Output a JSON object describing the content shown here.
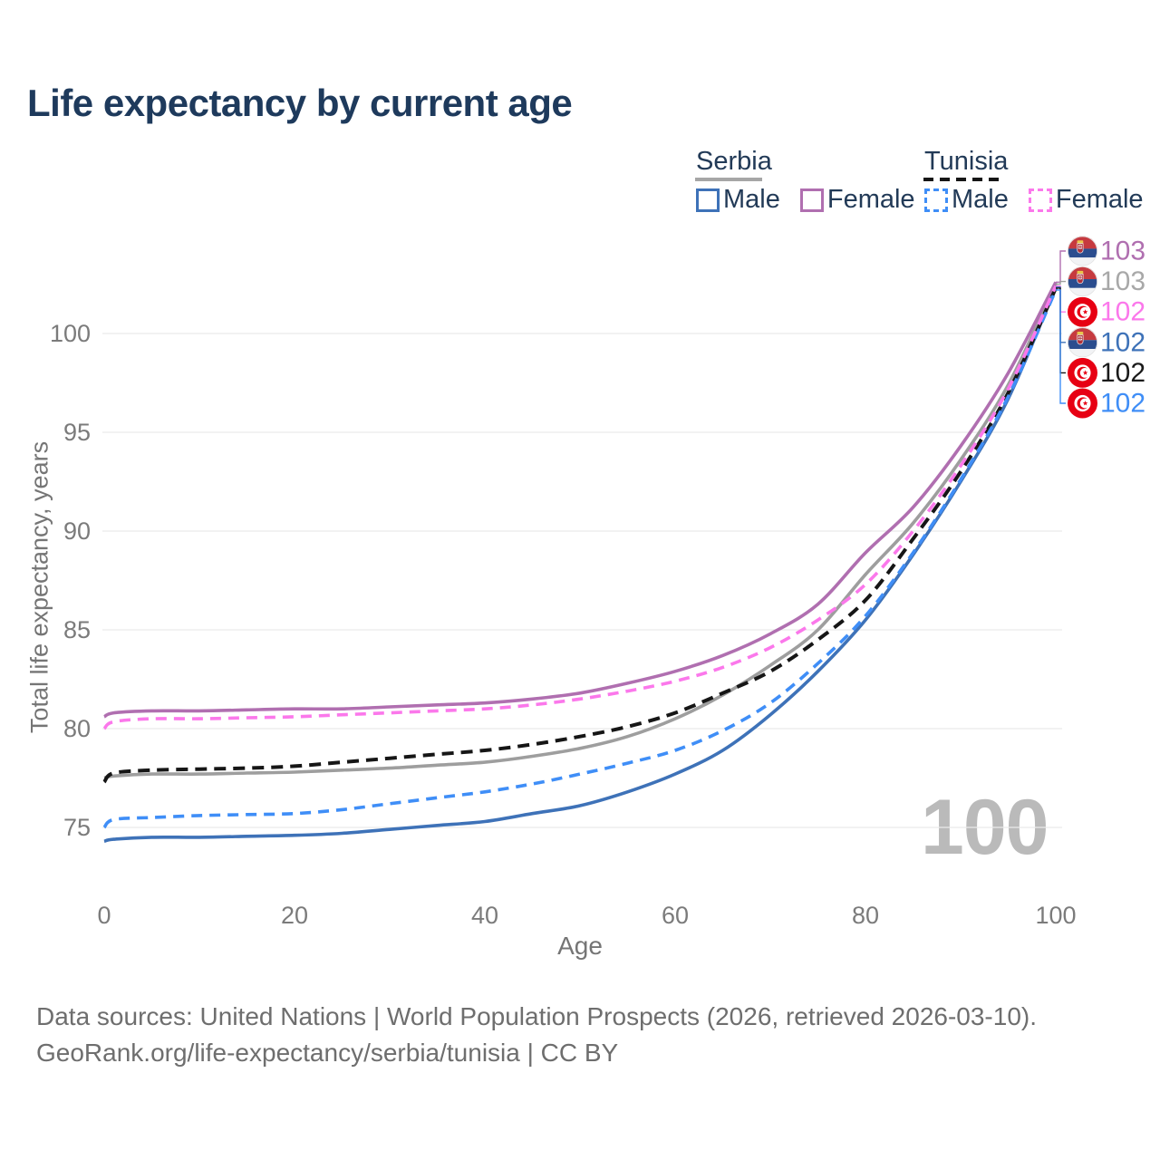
{
  "page": {
    "title": "Life expectancy by current age"
  },
  "legend": {
    "serbia": {
      "label": "Serbia",
      "male": "Male",
      "female": "Female",
      "line_color": "#9e9e9e",
      "line_style": "solid",
      "male_color": "#3e72b8",
      "female_color": "#b06fb0"
    },
    "tunisia": {
      "label": "Tunisia",
      "male": "Male",
      "female": "Female",
      "line_color": "#161616",
      "line_style": "dashed",
      "male_color": "#3f8ef7",
      "female_color": "#fb78eb"
    }
  },
  "watermark": "100",
  "footer": {
    "line1": "Data sources: United Nations | World Population Prospects (2026, retrieved 2026-03-10).",
    "line2": "GeoRank.org/life-expectancy/serbia/tunisia | CC BY"
  },
  "chart_data": {
    "type": "line",
    "title": "Life expectancy by current age",
    "xlabel": "Age",
    "ylabel": "Total life expectancy, years",
    "xlim": [
      0,
      100
    ],
    "ylim": [
      73.5,
      104
    ],
    "x_ticks": [
      0,
      20,
      40,
      60,
      80,
      100
    ],
    "y_ticks": [
      75,
      80,
      85,
      90,
      95,
      100
    ],
    "grid": "horizontal",
    "legend_position": "top-right",
    "x": [
      0,
      1,
      5,
      10,
      15,
      20,
      25,
      30,
      35,
      40,
      45,
      50,
      55,
      60,
      65,
      70,
      75,
      80,
      85,
      90,
      95,
      100
    ],
    "series": [
      {
        "id": "serbia-both",
        "name": "Serbia (both sexes)",
        "country": "Serbia",
        "sex": "both",
        "color": "#9e9e9e",
        "dash": null,
        "width": 3.6,
        "flag": "serbia",
        "end_label": "103",
        "end_label_color": "#a8a8a8",
        "values": [
          77.5,
          77.6,
          77.7,
          77.7,
          77.75,
          77.8,
          77.9,
          78.0,
          78.15,
          78.3,
          78.6,
          79.0,
          79.6,
          80.5,
          81.7,
          83.2,
          85.0,
          87.8,
          90.4,
          93.6,
          97.4,
          102.5
        ]
      },
      {
        "id": "serbia-male",
        "name": "Serbia Male",
        "country": "Serbia",
        "sex": "male",
        "color": "#3e72b8",
        "dash": null,
        "width": 3.6,
        "flag": "serbia",
        "end_label": "102",
        "end_label_color": "#3e72b8",
        "values": [
          74.3,
          74.4,
          74.5,
          74.5,
          74.55,
          74.6,
          74.7,
          74.9,
          75.1,
          75.3,
          75.7,
          76.1,
          76.8,
          77.7,
          78.9,
          80.7,
          82.9,
          85.5,
          88.8,
          92.5,
          96.7,
          102.35
        ]
      },
      {
        "id": "serbia-female",
        "name": "Serbia Female",
        "country": "Serbia",
        "sex": "female",
        "color": "#b06fb0",
        "dash": null,
        "width": 3.6,
        "flag": "serbia",
        "end_label": "103",
        "end_label_color": "#b06fb0",
        "values": [
          80.6,
          80.8,
          80.9,
          80.9,
          80.95,
          81.0,
          81.0,
          81.1,
          81.2,
          81.3,
          81.5,
          81.8,
          82.3,
          82.9,
          83.7,
          84.8,
          86.3,
          88.9,
          91.2,
          94.3,
          98.0,
          102.6
        ]
      },
      {
        "id": "tunisia-both",
        "name": "Tunisia (both sexes)",
        "country": "Tunisia",
        "sex": "both",
        "color": "#161616",
        "dash": [
          13,
          8
        ],
        "width": 4.0,
        "flag": "tunisia",
        "end_label": "102",
        "end_label_color": "#1a1a1a",
        "values": [
          77.3,
          77.75,
          77.9,
          77.95,
          78.0,
          78.1,
          78.3,
          78.5,
          78.7,
          78.9,
          79.2,
          79.6,
          80.1,
          80.8,
          81.8,
          82.9,
          84.5,
          86.5,
          89.6,
          93.0,
          97.0,
          102.3
        ]
      },
      {
        "id": "tunisia-male",
        "name": "Tunisia Male",
        "country": "Tunisia",
        "sex": "male",
        "color": "#3f8ef7",
        "dash": [
          12,
          8
        ],
        "width": 3.6,
        "flag": "tunisia",
        "end_label": "102",
        "end_label_color": "#3f8ef7",
        "values": [
          75.0,
          75.4,
          75.5,
          75.6,
          75.65,
          75.7,
          75.9,
          76.2,
          76.5,
          76.8,
          77.2,
          77.7,
          78.25,
          78.9,
          79.9,
          81.3,
          83.3,
          85.7,
          88.9,
          92.6,
          96.8,
          102.2
        ]
      },
      {
        "id": "tunisia-female",
        "name": "Tunisia Female",
        "country": "Tunisia",
        "sex": "female",
        "color": "#fb78eb",
        "dash": [
          12,
          8
        ],
        "width": 3.6,
        "flag": "tunisia",
        "end_label": "102",
        "end_label_color": "#fb78eb",
        "values": [
          80.0,
          80.35,
          80.5,
          80.5,
          80.55,
          80.6,
          80.7,
          80.8,
          80.9,
          81.0,
          81.2,
          81.5,
          81.9,
          82.4,
          83.1,
          84.1,
          85.5,
          87.3,
          90.0,
          93.3,
          97.2,
          102.4
        ]
      }
    ]
  }
}
